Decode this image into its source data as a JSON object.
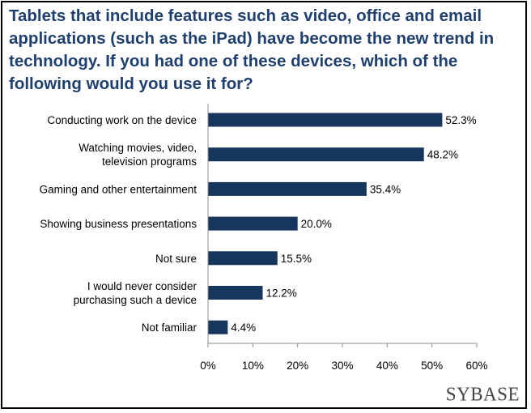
{
  "logo_text": "SYBASE",
  "chart_data": {
    "type": "bar",
    "orientation": "horizontal",
    "title": "Tablets that include features such as video, office and email applications (such as the iPad) have become the new trend in technology. If you had one of these devices, which of the following would you use it for?",
    "categories": [
      [
        "Conducting work on the device"
      ],
      [
        "Watching movies, video,",
        "television programs"
      ],
      [
        "Gaming and other entertainment"
      ],
      [
        "Showing business presentations"
      ],
      [
        "Not sure"
      ],
      [
        "I would never consider",
        "purchasing such a device"
      ],
      [
        "Not familiar"
      ]
    ],
    "values": [
      52.3,
      48.2,
      35.4,
      20.0,
      15.5,
      12.2,
      4.4
    ],
    "value_labels": [
      "52.3%",
      "48.2%",
      "35.4%",
      "20.0%",
      "15.5%",
      "12.2%",
      "4.4%"
    ],
    "xlim": [
      0,
      60
    ],
    "xticks": [
      0,
      10,
      20,
      30,
      40,
      50,
      60
    ],
    "xtick_labels": [
      "0%",
      "10%",
      "20%",
      "30%",
      "40%",
      "50%",
      "60%"
    ],
    "bar_color": "#17365d",
    "grid": false,
    "legend": "none"
  }
}
